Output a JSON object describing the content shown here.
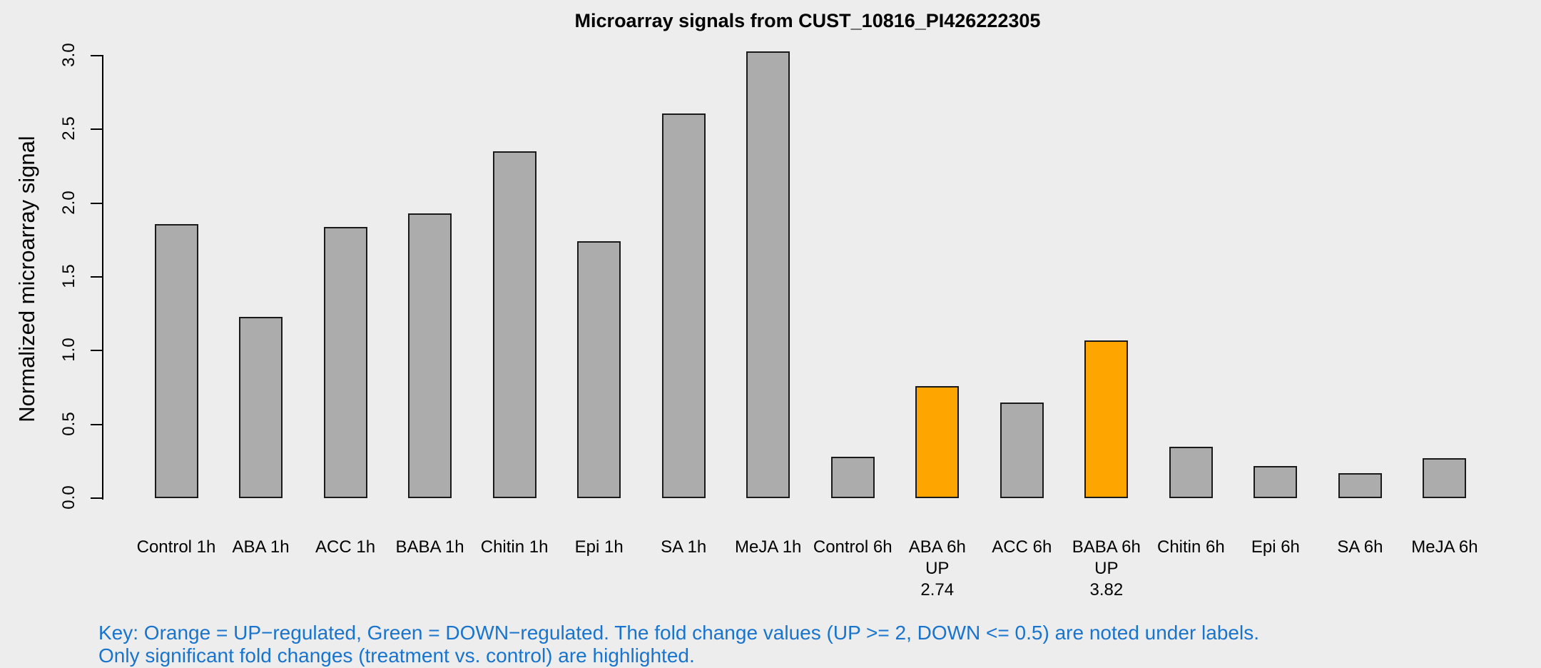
{
  "title": "Microarray signals from CUST_10816_PI426222305",
  "y_axis": {
    "label": "Normalized microarray signal",
    "tick_labels": [
      "0.0",
      "0.5",
      "1.0",
      "1.5",
      "2.0",
      "2.5",
      "3.0"
    ]
  },
  "key": {
    "line1": "Key: Orange = UP−regulated, Green = DOWN−regulated. The fold change values (UP >= 2, DOWN <= 0.5) are noted under labels.",
    "line2": "Only significant fold changes (treatment vs. control) are highlighted."
  },
  "colors": {
    "background": "#EDEDED",
    "bar_gray": "#ACACAC",
    "bar_orange": "#FFA500",
    "bar_border": "#1A1A1A",
    "key_text_blue": "#1874CD",
    "axis_black": "#000000"
  },
  "chart_data": {
    "type": "bar",
    "title": "Microarray signals from CUST_10816_PI426222305",
    "xlabel": "",
    "ylabel": "Normalized microarray signal",
    "ylim": [
      0,
      3.0
    ],
    "yticks": [
      0.0,
      0.5,
      1.0,
      1.5,
      2.0,
      2.5,
      3.0
    ],
    "grid": false,
    "legend_position": "none",
    "highlight_rule": "orange = significant UP-regulation (fold change >= 2 vs. control); fold change printed under label",
    "categories": [
      "Control 1h",
      "ABA 1h",
      "ACC 1h",
      "BABA 1h",
      "Chitin 1h",
      "Epi 1h",
      "SA 1h",
      "MeJA 1h",
      "Control 6h",
      "ABA 6h",
      "ACC 6h",
      "BABA 6h",
      "Chitin 6h",
      "Epi 6h",
      "SA 6h",
      "MeJA 6h"
    ],
    "bars": [
      {
        "label": "Control 1h",
        "value": 1.86,
        "color": "gray",
        "sublabel": []
      },
      {
        "label": "ABA 1h",
        "value": 1.23,
        "color": "gray",
        "sublabel": []
      },
      {
        "label": "ACC 1h",
        "value": 1.84,
        "color": "gray",
        "sublabel": []
      },
      {
        "label": "BABA 1h",
        "value": 1.93,
        "color": "gray",
        "sublabel": []
      },
      {
        "label": "Chitin 1h",
        "value": 2.35,
        "color": "gray",
        "sublabel": []
      },
      {
        "label": "Epi 1h",
        "value": 1.74,
        "color": "gray",
        "sublabel": []
      },
      {
        "label": "SA 1h",
        "value": 2.61,
        "color": "gray",
        "sublabel": []
      },
      {
        "label": "MeJA 1h",
        "value": 3.03,
        "color": "gray",
        "sublabel": []
      },
      {
        "label": "Control 6h",
        "value": 0.28,
        "color": "gray",
        "sublabel": []
      },
      {
        "label": "ABA 6h",
        "value": 0.76,
        "color": "orange",
        "sublabel": [
          "UP",
          "2.74"
        ]
      },
      {
        "label": "ACC 6h",
        "value": 0.65,
        "color": "gray",
        "sublabel": []
      },
      {
        "label": "BABA 6h",
        "value": 1.07,
        "color": "orange",
        "sublabel": [
          "UP",
          "3.82"
        ]
      },
      {
        "label": "Chitin 6h",
        "value": 0.35,
        "color": "gray",
        "sublabel": []
      },
      {
        "label": "Epi 6h",
        "value": 0.22,
        "color": "gray",
        "sublabel": []
      },
      {
        "label": "SA 6h",
        "value": 0.17,
        "color": "gray",
        "sublabel": []
      },
      {
        "label": "MeJA 6h",
        "value": 0.27,
        "color": "gray",
        "sublabel": []
      }
    ]
  }
}
